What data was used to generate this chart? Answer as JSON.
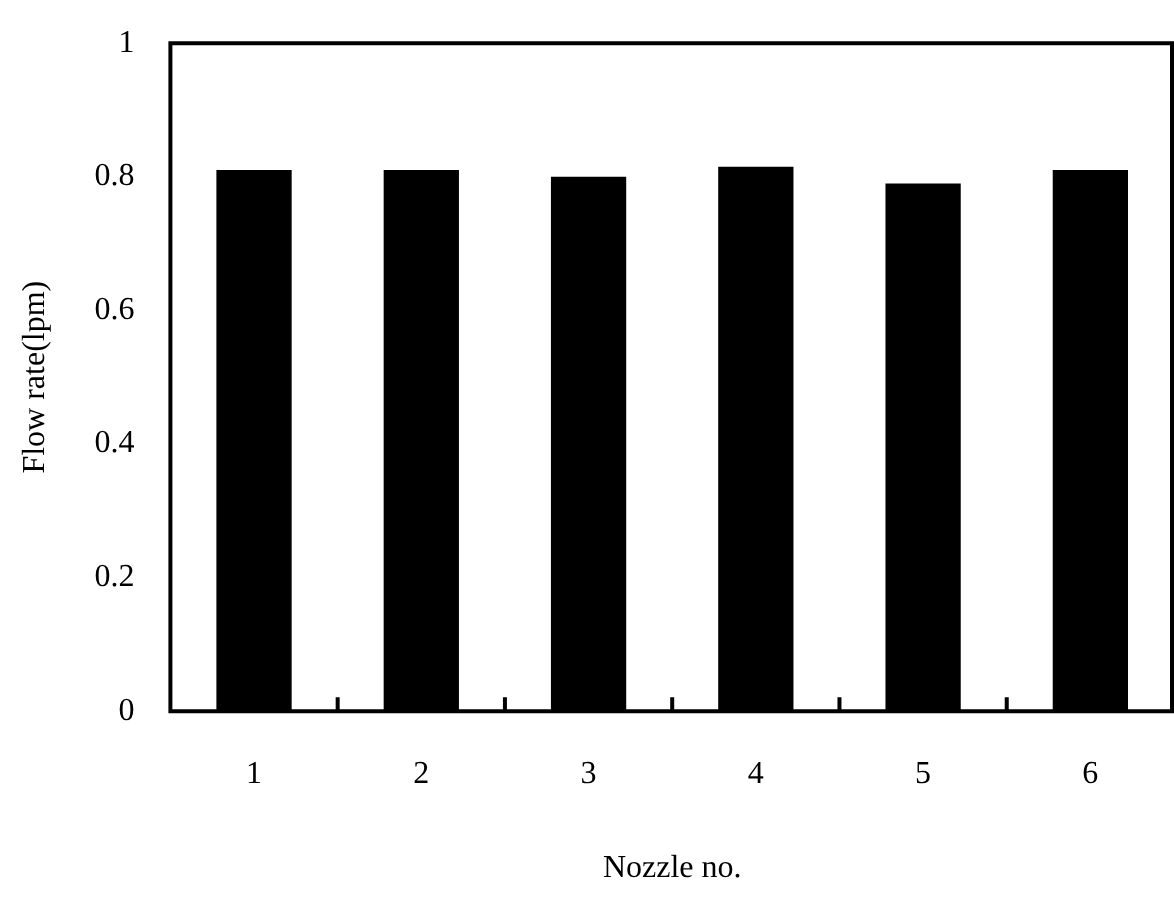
{
  "chart_data": {
    "type": "bar",
    "xlabel": "Nozzle no.",
    "ylabel": "Flow rate(lpm)",
    "categories": [
      "1",
      "2",
      "3",
      "4",
      "5",
      "6"
    ],
    "values": [
      0.81,
      0.81,
      0.8,
      0.815,
      0.79,
      0.81
    ],
    "color": "#000000",
    "ylim": [
      0,
      1
    ],
    "yticks": [
      0,
      0.2,
      0.4,
      0.6,
      0.8,
      1
    ],
    "grid": false,
    "legend": false
  }
}
